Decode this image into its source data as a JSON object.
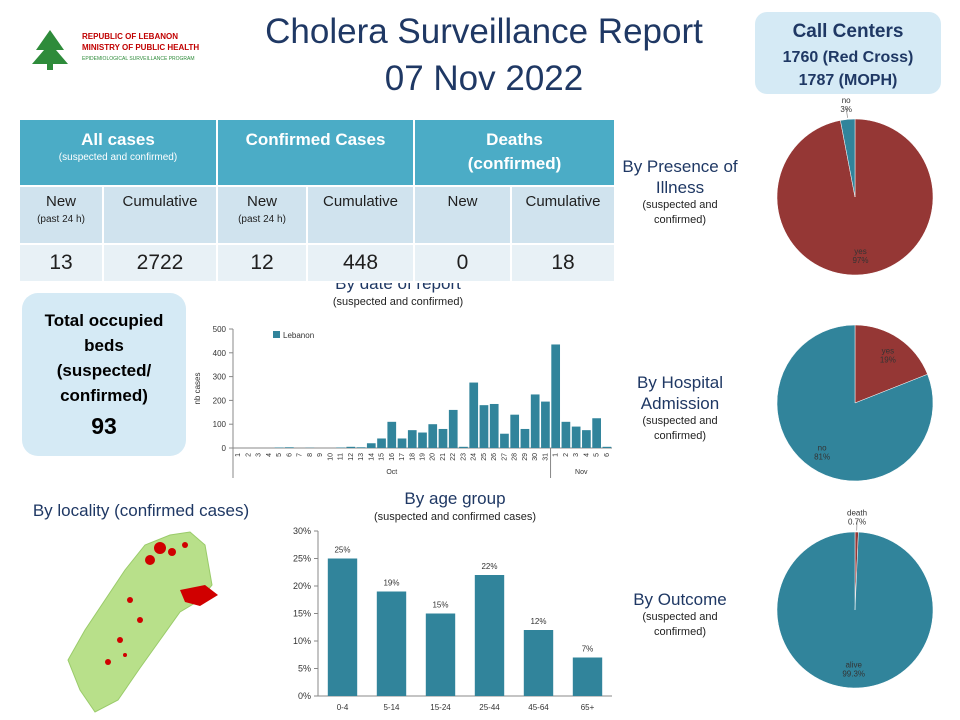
{
  "header": {
    "title": "Cholera Surveillance Report",
    "date": "07 Nov 2022"
  },
  "logo": {
    "line1": "REPUBLIC OF LEBANON",
    "line2": "MINISTRY OF PUBLIC HEALTH",
    "line3": "EPIDEMIOLOGICAL SURVEILLANCE PROGRAM"
  },
  "call_centers": {
    "title": "Call Centers",
    "lines": [
      "1760 (Red Cross)",
      "1787 (MOPH)"
    ]
  },
  "beds": {
    "label": "Total occupied beds (suspected/ confirmed)",
    "value": 93
  },
  "table": {
    "groups": [
      {
        "lines": [
          "All cases"
        ],
        "subtitle": "(suspected and confirmed)"
      },
      {
        "lines": [
          "Confirmed  Cases"
        ]
      },
      {
        "lines": [
          "Deaths",
          "(confirmed)"
        ]
      }
    ],
    "columns": [
      {
        "label": "New",
        "note": "(past 24 h)"
      },
      {
        "label": "Cumulative"
      },
      {
        "label": "New",
        "note": "(past 24 h)"
      },
      {
        "label": "Cumulative"
      },
      {
        "label": "New"
      },
      {
        "label": "Cumulative"
      }
    ],
    "values": [
      13,
      2722,
      12,
      448,
      0,
      18
    ]
  },
  "map": {
    "title": "By locality (confirmed cases)"
  },
  "chart_data": [
    {
      "type": "bar",
      "title": "By date of report",
      "subtitle": "(suspected and confirmed)",
      "y_label": "nb cases",
      "categories": [
        "1",
        "2",
        "3",
        "4",
        "5",
        "6",
        "7",
        "8",
        "9",
        "10",
        "11",
        "12",
        "13",
        "14",
        "15",
        "16",
        "17",
        "18",
        "19",
        "20",
        "21",
        "22",
        "23",
        "24",
        "25",
        "26",
        "27",
        "28",
        "29",
        "30",
        "31",
        "1",
        "2",
        "3",
        "4",
        "5",
        "6"
      ],
      "month_labels": [
        "Oct",
        "Nov"
      ],
      "series": [
        {
          "name": "Lebanon",
          "color": "#31849b",
          "values": [
            0,
            0,
            0,
            0,
            2,
            3,
            0,
            1,
            0,
            0,
            2,
            5,
            3,
            20,
            40,
            110,
            40,
            75,
            65,
            100,
            80,
            160,
            5,
            275,
            180,
            185,
            60,
            140,
            80,
            225,
            195,
            435,
            110,
            90,
            75,
            125,
            5
          ]
        }
      ],
      "ylim": [
        0,
        500
      ],
      "yticks": [
        0,
        100,
        200,
        300,
        400,
        500
      ],
      "legend": "top-left",
      "grid": false
    },
    {
      "type": "bar",
      "title": "By age group",
      "subtitle": "(suspected and confirmed cases)",
      "categories": [
        "0-4",
        "5-14",
        "15-24",
        "25-44",
        "45-64",
        "65+"
      ],
      "values": [
        25,
        19,
        15,
        22,
        12,
        7
      ],
      "value_labels": [
        "25%",
        "19%",
        "15%",
        "22%",
        "12%",
        "7%"
      ],
      "color": "#31849b",
      "ylim": [
        0,
        30
      ],
      "yticks": [
        {
          "value": 0,
          "label": "0%"
        },
        {
          "value": 5,
          "label": "5%"
        },
        {
          "value": 10,
          "label": "10%"
        },
        {
          "value": 15,
          "label": "15%"
        },
        {
          "value": 20,
          "label": "20%"
        },
        {
          "value": 25,
          "label": "25%"
        },
        {
          "value": 30,
          "label": "30%"
        }
      ],
      "grid": false
    },
    {
      "type": "pie",
      "title": "By Presence of Illness",
      "subtitle": "(suspected and confirmed)",
      "categories": [
        "yes",
        "no"
      ],
      "values": [
        97,
        3
      ],
      "value_labels": [
        "97%",
        "3%"
      ],
      "colors": [
        "#953735",
        "#31849b"
      ]
    },
    {
      "type": "pie",
      "title": "By Hospital Admission",
      "subtitle": "(suspected and confirmed)",
      "categories": [
        "yes",
        "no"
      ],
      "values": [
        19,
        81
      ],
      "value_labels": [
        "19%",
        "81%"
      ],
      "colors": [
        "#953735",
        "#31849b"
      ]
    },
    {
      "type": "pie",
      "title": "By Outcome",
      "subtitle": "(suspected and confirmed)",
      "categories": [
        "death",
        "alive"
      ],
      "values": [
        0.7,
        99.3
      ],
      "value_labels": [
        "0.7%",
        "99.3%"
      ],
      "colors": [
        "#953735",
        "#31849b"
      ]
    }
  ]
}
